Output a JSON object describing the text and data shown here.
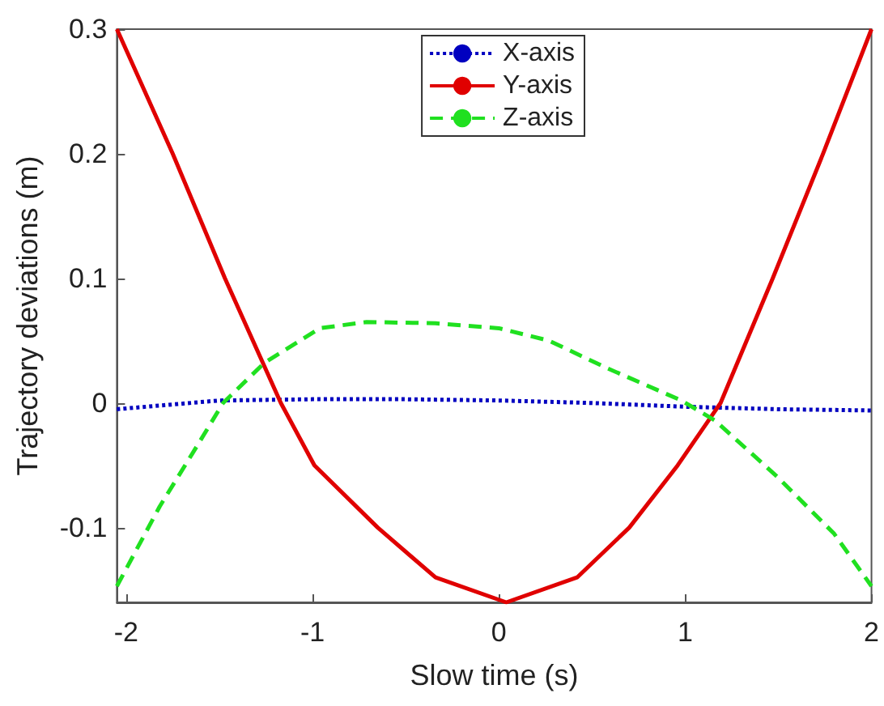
{
  "chart_data": {
    "type": "line",
    "xlabel": "Slow time (s)",
    "ylabel": "Trajectory deviations (m)",
    "xlim": [
      -2.05,
      2.0
    ],
    "xticks": [
      -2,
      -1,
      0,
      1,
      2
    ],
    "ylim": [
      -0.16,
      0.3
    ],
    "yticks": [
      -0.1,
      0,
      0.1,
      0.2,
      0.3
    ],
    "grid": false,
    "legend": "top right",
    "marker": "none",
    "series": [
      {
        "name": "X-axis",
        "color": "#0000c0",
        "line_style": "dotted",
        "x": [
          -2.05,
          -1.5,
          -1.0,
          -0.5,
          0,
          0.5,
          1.0,
          1.5,
          2.0
        ],
        "values": [
          -0.005,
          0.002,
          0.003,
          0.003,
          0.002,
          0.0,
          -0.003,
          -0.005,
          -0.006
        ]
      },
      {
        "name": "Y-axis",
        "color": "#e00000",
        "line_style": "solid",
        "x": [
          -2.05,
          -1.75,
          -1.47,
          -1.17,
          -0.99,
          -0.65,
          -0.34,
          0.04,
          0.42,
          0.7,
          0.96,
          1.19,
          1.47,
          1.74,
          2.0
        ],
        "values": [
          0.3,
          0.2,
          0.1,
          0,
          -0.05,
          -0.1,
          -0.14,
          -0.16,
          -0.14,
          -0.1,
          -0.05,
          0,
          0.1,
          0.2,
          0.3
        ]
      },
      {
        "name": "Z-axis",
        "color": "#20e020",
        "line_style": "dashed",
        "x": [
          -2.05,
          -1.82,
          -1.63,
          -1.48,
          -1.26,
          -0.96,
          -0.71,
          -0.34,
          0,
          0.27,
          0.58,
          0.98,
          1.16,
          1.5,
          1.8,
          2.0
        ],
        "values": [
          -0.147,
          -0.083,
          -0.037,
          0,
          0.032,
          0.06,
          0.065,
          0.064,
          0.06,
          0.05,
          0.028,
          0.002,
          -0.014,
          -0.06,
          -0.105,
          -0.147
        ]
      }
    ]
  }
}
